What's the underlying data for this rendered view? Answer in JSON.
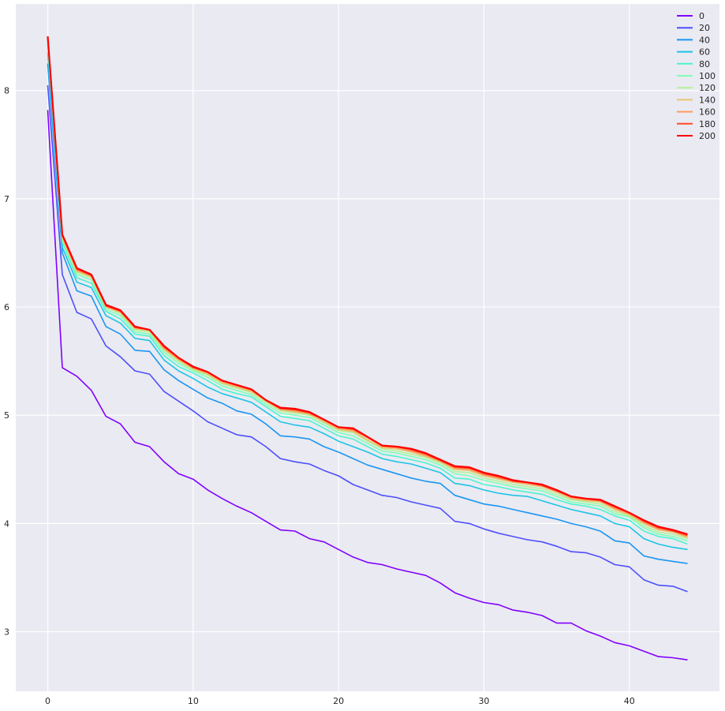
{
  "chart_data": {
    "type": "line",
    "title": "",
    "xlabel": "",
    "ylabel": "",
    "xlim": [
      -2.2,
      46.2
    ],
    "ylim": [
      2.45,
      8.8
    ],
    "xticks": [
      0,
      10,
      20,
      30,
      40
    ],
    "yticks": [
      3,
      4,
      5,
      6,
      7,
      8
    ],
    "grid": true,
    "legend_position": "top-right",
    "x": [
      0,
      1,
      2,
      3,
      4,
      5,
      6,
      7,
      8,
      9,
      10,
      11,
      12,
      13,
      14,
      15,
      16,
      17,
      18,
      19,
      20,
      21,
      22,
      23,
      24,
      25,
      26,
      27,
      28,
      29,
      30,
      31,
      32,
      33,
      34,
      35,
      36,
      37,
      38,
      39,
      40,
      41,
      42,
      43,
      44
    ],
    "series": [
      {
        "name": "0",
        "color": "#8000ff",
        "values": [
          7.82,
          5.44,
          5.36,
          5.23,
          4.99,
          4.92,
          4.75,
          4.71,
          4.57,
          4.46,
          4.41,
          4.31,
          4.23,
          4.16,
          4.1,
          4.02,
          3.94,
          3.93,
          3.86,
          3.83,
          3.76,
          3.69,
          3.64,
          3.62,
          3.58,
          3.55,
          3.52,
          3.45,
          3.36,
          3.31,
          3.27,
          3.25,
          3.2,
          3.18,
          3.15,
          3.08,
          3.08,
          3.01,
          2.96,
          2.9,
          2.87,
          2.82,
          2.77,
          2.76,
          2.74
        ]
      },
      {
        "name": "20",
        "color": "#4d4ffc",
        "values": [
          8.05,
          6.3,
          5.95,
          5.89,
          5.64,
          5.54,
          5.41,
          5.38,
          5.22,
          5.13,
          5.04,
          4.94,
          4.88,
          4.82,
          4.8,
          4.71,
          4.6,
          4.57,
          4.55,
          4.49,
          4.44,
          4.36,
          4.31,
          4.26,
          4.24,
          4.2,
          4.17,
          4.14,
          4.02,
          4.0,
          3.95,
          3.91,
          3.88,
          3.85,
          3.83,
          3.79,
          3.74,
          3.73,
          3.69,
          3.62,
          3.6,
          3.48,
          3.43,
          3.42,
          3.37
        ]
      },
      {
        "name": "40",
        "color": "#1996f3",
        "values": [
          8.25,
          6.5,
          6.15,
          6.1,
          5.82,
          5.75,
          5.6,
          5.59,
          5.42,
          5.32,
          5.24,
          5.16,
          5.11,
          5.04,
          5.01,
          4.92,
          4.81,
          4.8,
          4.78,
          4.71,
          4.66,
          4.6,
          4.54,
          4.5,
          4.46,
          4.42,
          4.39,
          4.37,
          4.26,
          4.22,
          4.18,
          4.16,
          4.13,
          4.1,
          4.07,
          4.04,
          4.0,
          3.97,
          3.93,
          3.84,
          3.82,
          3.7,
          3.67,
          3.65,
          3.63
        ]
      },
      {
        "name": "60",
        "color": "#1cc4e6",
        "values": [
          8.35,
          6.55,
          6.23,
          6.18,
          5.92,
          5.85,
          5.71,
          5.69,
          5.51,
          5.41,
          5.34,
          5.26,
          5.2,
          5.16,
          5.12,
          5.03,
          4.94,
          4.91,
          4.89,
          4.83,
          4.76,
          4.71,
          4.66,
          4.6,
          4.57,
          4.55,
          4.51,
          4.47,
          4.37,
          4.35,
          4.31,
          4.28,
          4.26,
          4.25,
          4.21,
          4.17,
          4.13,
          4.1,
          4.07,
          4.0,
          3.97,
          3.86,
          3.81,
          3.78,
          3.76
        ]
      },
      {
        "name": "80",
        "color": "#4df3ce",
        "values": [
          8.42,
          6.6,
          6.27,
          6.22,
          5.96,
          5.89,
          5.75,
          5.73,
          5.55,
          5.45,
          5.39,
          5.32,
          5.24,
          5.2,
          5.17,
          5.08,
          4.99,
          4.97,
          4.95,
          4.88,
          4.81,
          4.78,
          4.71,
          4.64,
          4.62,
          4.59,
          4.56,
          4.51,
          4.42,
          4.41,
          4.36,
          4.34,
          4.31,
          4.29,
          4.27,
          4.22,
          4.18,
          4.16,
          4.13,
          4.07,
          4.03,
          3.93,
          3.88,
          3.86,
          3.81
        ]
      },
      {
        "name": "100",
        "color": "#80ffb4",
        "values": [
          8.45,
          6.62,
          6.3,
          6.25,
          5.98,
          5.92,
          5.77,
          5.75,
          5.58,
          5.48,
          5.41,
          5.35,
          5.27,
          5.23,
          5.19,
          5.1,
          5.02,
          5.0,
          4.98,
          4.91,
          4.84,
          4.81,
          4.74,
          4.67,
          4.65,
          4.62,
          4.59,
          4.54,
          4.46,
          4.44,
          4.4,
          4.37,
          4.34,
          4.32,
          4.3,
          4.25,
          4.2,
          4.18,
          4.16,
          4.09,
          4.06,
          3.96,
          3.9,
          3.88,
          3.84
        ]
      },
      {
        "name": "120",
        "color": "#b3f396",
        "values": [
          8.47,
          6.63,
          6.32,
          6.27,
          6.0,
          5.94,
          5.79,
          5.77,
          5.6,
          5.5,
          5.42,
          5.37,
          5.29,
          5.25,
          5.21,
          5.12,
          5.04,
          5.02,
          5.0,
          4.93,
          4.86,
          4.84,
          4.76,
          4.69,
          4.67,
          4.64,
          4.61,
          4.56,
          4.48,
          4.47,
          4.42,
          4.39,
          4.36,
          4.34,
          4.32,
          4.27,
          4.22,
          4.2,
          4.18,
          4.11,
          4.07,
          3.98,
          3.92,
          3.9,
          3.86
        ]
      },
      {
        "name": "140",
        "color": "#e6c473",
        "values": [
          8.48,
          6.64,
          6.33,
          6.28,
          6.0,
          5.95,
          5.8,
          5.78,
          5.61,
          5.51,
          5.43,
          5.38,
          5.3,
          5.26,
          5.22,
          5.13,
          5.05,
          5.03,
          5.01,
          4.94,
          4.87,
          4.85,
          4.77,
          4.7,
          4.69,
          4.66,
          4.62,
          4.57,
          4.5,
          4.49,
          4.44,
          4.41,
          4.38,
          4.36,
          4.34,
          4.29,
          4.23,
          4.21,
          4.2,
          4.13,
          4.08,
          4.0,
          3.94,
          3.92,
          3.87
        ]
      },
      {
        "name": "160",
        "color": "#ff9b5c",
        "values": [
          8.49,
          6.65,
          6.34,
          6.29,
          6.01,
          5.96,
          5.81,
          5.79,
          5.62,
          5.52,
          5.44,
          5.39,
          5.31,
          5.27,
          5.23,
          5.14,
          5.06,
          5.04,
          5.02,
          4.95,
          4.88,
          4.86,
          4.79,
          4.71,
          4.7,
          4.67,
          4.63,
          4.58,
          4.51,
          4.5,
          4.45,
          4.42,
          4.39,
          4.37,
          4.35,
          4.3,
          4.24,
          4.22,
          4.21,
          4.14,
          4.09,
          4.01,
          3.95,
          3.93,
          3.88
        ]
      },
      {
        "name": "180",
        "color": "#ff4b2b",
        "values": [
          8.5,
          6.66,
          6.35,
          6.29,
          6.01,
          5.96,
          5.81,
          5.79,
          5.63,
          5.53,
          5.44,
          5.4,
          5.32,
          5.28,
          5.24,
          5.14,
          5.06,
          5.05,
          5.02,
          4.96,
          4.89,
          4.87,
          4.8,
          4.72,
          4.71,
          4.68,
          4.64,
          4.58,
          4.52,
          4.51,
          4.46,
          4.43,
          4.39,
          4.38,
          4.35,
          4.3,
          4.25,
          4.23,
          4.21,
          4.15,
          4.1,
          4.02,
          3.96,
          3.93,
          3.89
        ]
      },
      {
        "name": "200",
        "color": "#ff0000",
        "values": [
          8.5,
          6.67,
          6.36,
          6.3,
          6.02,
          5.97,
          5.82,
          5.79,
          5.64,
          5.53,
          5.45,
          5.4,
          5.32,
          5.28,
          5.24,
          5.14,
          5.07,
          5.06,
          5.03,
          4.96,
          4.89,
          4.88,
          4.8,
          4.72,
          4.71,
          4.69,
          4.65,
          4.59,
          4.53,
          4.52,
          4.47,
          4.44,
          4.4,
          4.38,
          4.36,
          4.31,
          4.25,
          4.23,
          4.22,
          4.16,
          4.1,
          4.03,
          3.97,
          3.94,
          3.9
        ]
      }
    ]
  }
}
